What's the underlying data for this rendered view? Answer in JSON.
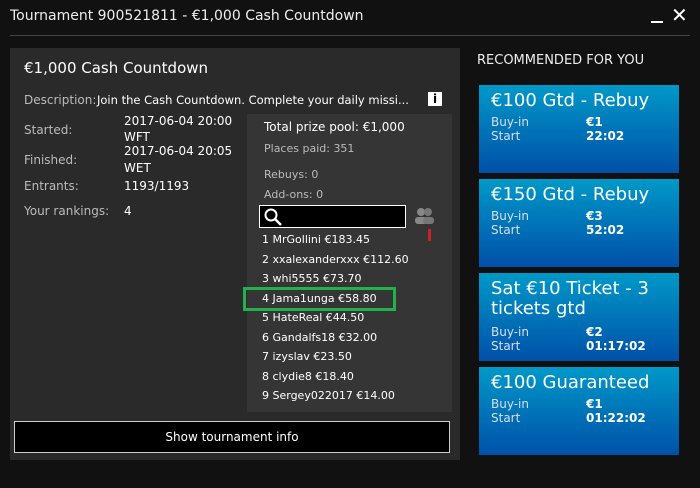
{
  "window": {
    "title": "Tournament 900521811 - €1,000 Cash Countdown",
    "close_label": "✕"
  },
  "details": {
    "name": "€1,000 Cash Countdown",
    "description_label": "Description:",
    "description": "Join the Cash Countdown. Complete your daily missi...",
    "info_icon": "i",
    "started_label": "Started:",
    "started_value": "2017-06-04 20:00",
    "started_tz": "WFT",
    "finished_label": "Finished:",
    "finished_value": "2017-06-04 20:05",
    "finished_tz": "WET",
    "entrants_label": "Entrants:",
    "entrants_value": "1193/1193",
    "rankings_label": "Your rankings:",
    "rankings_value": "4"
  },
  "prize": {
    "total": "Total prize pool: €1,000",
    "places_paid": "Places paid: 351",
    "rebuys": "Rebuys: 0",
    "addons": "Add-ons: 0",
    "search_value": "",
    "rankings": [
      "1 MrGollini €183.45",
      "2 xxalexanderxxx €112.60",
      "3 whi5555 €73.70",
      "4 Jama1unga €58.80",
      "5 HateReal €44.50",
      "6 Gandalfs18 €32.00",
      "7 izyslav €23.50",
      "8 clydie8 €18.40",
      "9 Sergey022017 €14.00"
    ],
    "highlighted_index": 3,
    "highlight_color": "#22b14c"
  },
  "show_info_label": "Show tournament info",
  "recommended": {
    "heading": "RECOMMENDED FOR YOU",
    "buyin_label": "Buy-in",
    "start_label": "Start",
    "cards": [
      {
        "title": "€100 Gtd - Rebuy",
        "buyin": "€1",
        "start": "22:02"
      },
      {
        "title": "€150 Gtd - Rebuy",
        "buyin": "€3",
        "start": "52:02"
      },
      {
        "title": "Sat €10 Ticket - 3 tickets gtd",
        "buyin": "€2",
        "start": "01:17:02"
      },
      {
        "title": "€100 Guaranteed",
        "buyin": "€1",
        "start": "01:22:02"
      }
    ]
  }
}
